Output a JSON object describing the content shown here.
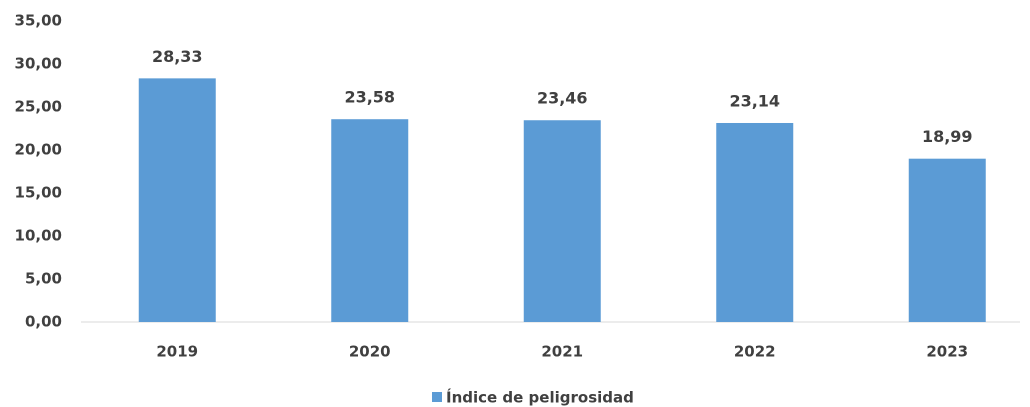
{
  "chart_data": {
    "type": "bar",
    "categories": [
      "2019",
      "2020",
      "2021",
      "2022",
      "2023"
    ],
    "series": [
      {
        "name": "Índice de peligrosidad",
        "color": "#5b9bd5",
        "values": [
          28.33,
          23.58,
          23.46,
          23.14,
          18.99
        ],
        "value_labels": [
          "28,33",
          "23,58",
          "23,46",
          "23,14",
          "18,99"
        ]
      }
    ],
    "ylim": [
      0,
      35
    ],
    "yticks": [
      {
        "value": 0,
        "label": "0,00"
      },
      {
        "value": 5,
        "label": "5,00"
      },
      {
        "value": 10,
        "label": "10,00"
      },
      {
        "value": 15,
        "label": "15,00"
      },
      {
        "value": 20,
        "label": "20,00"
      },
      {
        "value": 25,
        "label": "25,00"
      },
      {
        "value": 30,
        "label": "30,00"
      },
      {
        "value": 35,
        "label": "35,00"
      }
    ],
    "grid": false,
    "legend": "bottom"
  }
}
